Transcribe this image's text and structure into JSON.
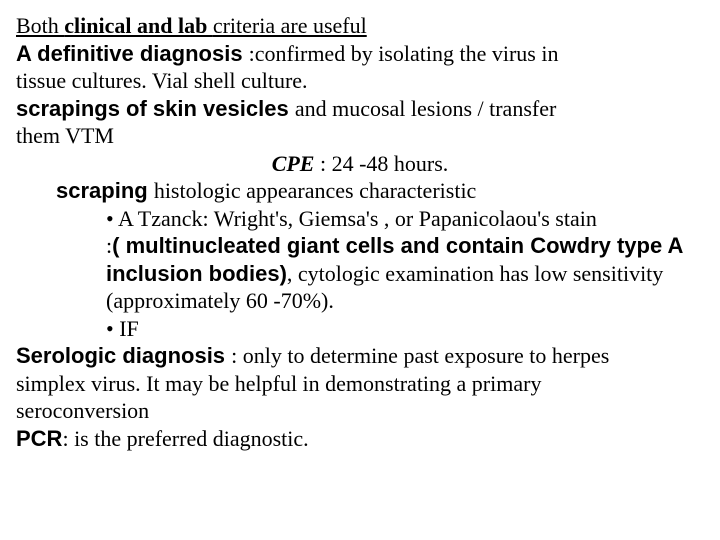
{
  "l1a": "Both ",
  "l1b": "clinical and lab ",
  "l1c": "criteria are useful",
  "l2a": "A definitive diagnosis ",
  "l2b": ":confirmed by isolating the virus in",
  "l3": "tissue cultures. Vial shell culture.",
  "l4a": "scrapings of skin vesicles ",
  "l4b": "and mucosal lesions / transfer",
  "l5": "them VTM",
  "l6a": "CPE ",
  "l6b": ": 24 -48 hours.",
  "l7a": "scraping ",
  "l7b": "histologic appearances characteristic",
  "l8": "• A Tzanck:  Wright's, Giemsa's , or Papanicolaou's stain",
  "l9a": ":",
  "l9b": "( multinucleated giant cells and contain Cowdry type A",
  "l10a": "inclusion bodies)",
  "l10b": ", cytologic examination has low sensitivity",
  "l11": "(approximately 60 -70%).",
  "l12": "• IF",
  "l13a": "Serologic diagnosis ",
  "l13b": ": only to determine past exposure to herpes",
  "l14": "simplex virus. It may be helpful in demonstrating a primary",
  "l15": "seroconversion",
  "l16a": "PCR",
  "l16b": ": is the preferred diagnostic."
}
